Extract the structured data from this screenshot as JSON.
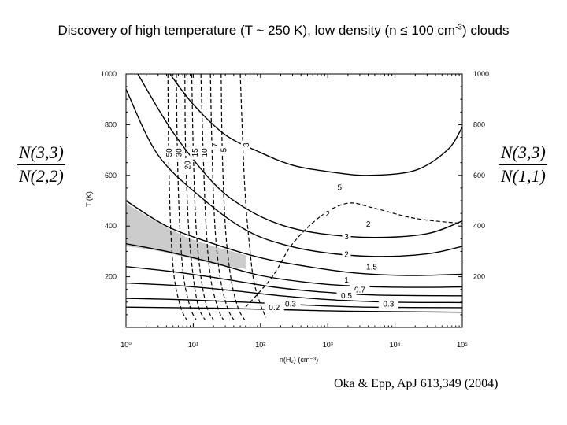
{
  "page": {
    "title": "Discovery of high temperature (T ~ 250 K), low density (n ≤ 100 cm",
    "title_sup": "-3",
    "title_end": ") clouds",
    "citation": "Oka & Epp, ApJ 613,349 (2004)"
  },
  "ratios": {
    "left": {
      "numerator": "N(3,3)",
      "denominator": "N(2,2)"
    },
    "right": {
      "numerator": "N(3,3)",
      "denominator": "N(1,1)"
    }
  },
  "colors": {
    "shade": "#cccccc",
    "line": "#000000",
    "background": "#ffffff"
  },
  "chart_data": {
    "type": "line",
    "title": "",
    "xlabel": "n(H₂) (cm⁻³)",
    "ylabel": "T (K)",
    "xscale": "log",
    "xlim": [
      1,
      100000
    ],
    "ylim": [
      0,
      1000
    ],
    "x_ticks": [
      1,
      10,
      100,
      1000,
      10000,
      100000
    ],
    "x_tick_labels": [
      "10⁰",
      "10¹",
      "10²",
      "10³",
      "10⁴",
      "10⁵"
    ],
    "y_ticks": [
      200,
      400,
      600,
      800,
      1000
    ],
    "y_tick_labels": [
      "200",
      "400",
      "600",
      "800",
      "1000"
    ],
    "shaded_region": {
      "label": "",
      "points": [
        [
          1,
          490
        ],
        [
          2,
          440
        ],
        [
          4,
          395
        ],
        [
          8,
          355
        ],
        [
          20,
          320
        ],
        [
          60,
          285
        ],
        [
          60,
          230
        ],
        [
          20,
          250
        ],
        [
          8,
          275
        ],
        [
          4,
          295
        ],
        [
          2,
          310
        ],
        [
          1,
          320
        ]
      ]
    },
    "solid_series": [
      {
        "name": "5",
        "values": [
          [
            4.5,
            1000
          ],
          [
            10,
            880
          ],
          [
            30,
            760
          ],
          [
            100,
            690
          ],
          [
            300,
            640
          ],
          [
            1000,
            615
          ],
          [
            4000,
            600
          ],
          [
            20000,
            620
          ],
          [
            60000,
            700
          ],
          [
            100000,
            790
          ]
        ]
      },
      {
        "name": "3",
        "values": [
          [
            1.5,
            1000
          ],
          [
            5,
            770
          ],
          [
            20,
            570
          ],
          [
            60,
            470
          ],
          [
            200,
            405
          ],
          [
            800,
            370
          ],
          [
            5000,
            355
          ],
          [
            30000,
            370
          ],
          [
            100000,
            420
          ]
        ]
      },
      {
        "name": "2",
        "values": [
          [
            1,
            940
          ],
          [
            3,
            680
          ],
          [
            15,
            500
          ],
          [
            60,
            385
          ],
          [
            200,
            330
          ],
          [
            900,
            295
          ],
          [
            5000,
            280
          ],
          [
            30000,
            290
          ],
          [
            100000,
            320
          ]
        ]
      },
      {
        "name": "1.5",
        "values": [
          [
            1,
            500
          ],
          [
            4,
            400
          ],
          [
            20,
            330
          ],
          [
            100,
            275
          ],
          [
            500,
            240
          ],
          [
            2500,
            215
          ],
          [
            15000,
            205
          ],
          [
            100000,
            210
          ]
        ]
      },
      {
        "name": "1",
        "values": [
          [
            1,
            330
          ],
          [
            4,
            300
          ],
          [
            20,
            255
          ],
          [
            100,
            205
          ],
          [
            600,
            175
          ],
          [
            3000,
            162
          ],
          [
            20000,
            158
          ],
          [
            100000,
            160
          ]
        ]
      },
      {
        "name": "0.7",
        "values": [
          [
            1,
            240
          ],
          [
            5,
            220
          ],
          [
            30,
            190
          ],
          [
            150,
            160
          ],
          [
            800,
            140
          ],
          [
            5000,
            128
          ],
          [
            100000,
            125
          ]
        ]
      },
      {
        "name": "0.5",
        "values": [
          [
            1,
            175
          ],
          [
            6,
            165
          ],
          [
            40,
            145
          ],
          [
            200,
            125
          ],
          [
            1000,
            110
          ],
          [
            8000,
            100
          ],
          [
            100000,
            98
          ]
        ]
      },
      {
        "name": "0.3",
        "values": [
          [
            1,
            115
          ],
          [
            10,
            108
          ],
          [
            80,
            98
          ],
          [
            500,
            88
          ],
          [
            4000,
            80
          ],
          [
            100000,
            78
          ]
        ]
      },
      {
        "name": "0.2",
        "values": [
          [
            1,
            80
          ],
          [
            20,
            76
          ],
          [
            200,
            70
          ],
          [
            2000,
            64
          ],
          [
            100000,
            60
          ]
        ]
      }
    ],
    "dashed_series": [
      {
        "name": "50",
        "values": [
          [
            4.2,
            1000
          ],
          [
            4.3,
            700
          ],
          [
            4.6,
            400
          ],
          [
            5.2,
            200
          ],
          [
            6.5,
            80
          ],
          [
            8,
            30
          ]
        ]
      },
      {
        "name": "30",
        "values": [
          [
            5.6,
            1000
          ],
          [
            5.8,
            700
          ],
          [
            6.3,
            400
          ],
          [
            7.2,
            200
          ],
          [
            9,
            80
          ],
          [
            11,
            30
          ]
        ]
      },
      {
        "name": "20",
        "values": [
          [
            7.5,
            1000
          ],
          [
            7.7,
            700
          ],
          [
            8.5,
            400
          ],
          [
            10,
            200
          ],
          [
            12,
            80
          ],
          [
            15,
            30
          ]
        ]
      },
      {
        "name": "15",
        "values": [
          [
            9.5,
            1000
          ],
          [
            10,
            700
          ],
          [
            11,
            400
          ],
          [
            13,
            200
          ],
          [
            16,
            80
          ],
          [
            20,
            30
          ]
        ]
      },
      {
        "name": "10",
        "values": [
          [
            13,
            1000
          ],
          [
            14,
            700
          ],
          [
            15.5,
            400
          ],
          [
            18,
            200
          ],
          [
            23,
            80
          ],
          [
            28,
            30
          ]
        ]
      },
      {
        "name": "7",
        "values": [
          [
            18,
            1000
          ],
          [
            19,
            700
          ],
          [
            21,
            400
          ],
          [
            25,
            200
          ],
          [
            32,
            80
          ],
          [
            40,
            30
          ]
        ]
      },
      {
        "name": "5",
        "values": [
          [
            26,
            1000
          ],
          [
            27,
            700
          ],
          [
            30,
            400
          ],
          [
            36,
            200
          ],
          [
            46,
            80
          ],
          [
            58,
            30
          ]
        ]
      },
      {
        "name": "3",
        "values": [
          [
            50,
            1000
          ],
          [
            55,
            700
          ],
          [
            60,
            500
          ],
          [
            70,
            300
          ],
          [
            80,
            180
          ],
          [
            100,
            90
          ],
          [
            120,
            40
          ]
        ]
      },
      {
        "name": "2",
        "values": [
          [
            60,
            80
          ],
          [
            150,
            200
          ],
          [
            300,
            330
          ],
          [
            800,
            440
          ],
          [
            2000,
            490
          ],
          [
            5000,
            470
          ],
          [
            20000,
            430
          ],
          [
            100000,
            410
          ]
        ]
      }
    ],
    "labels": [
      {
        "text": "50",
        "x": 4.3,
        "y": 690,
        "rotate": -90
      },
      {
        "text": "30",
        "x": 6.0,
        "y": 690,
        "rotate": -90
      },
      {
        "text": "20",
        "x": 8.1,
        "y": 640,
        "rotate": -90
      },
      {
        "text": "15",
        "x": 10.5,
        "y": 690,
        "rotate": -90
      },
      {
        "text": "10",
        "x": 14.5,
        "y": 690,
        "rotate": -90
      },
      {
        "text": "7",
        "x": 20.5,
        "y": 720,
        "rotate": -90
      },
      {
        "text": "5",
        "x": 28,
        "y": 700,
        "rotate": -90
      },
      {
        "text": "3",
        "x": 60,
        "y": 720,
        "rotate": -90
      },
      {
        "text": "5",
        "x": 1500,
        "y": 555,
        "rotate": 0
      },
      {
        "text": "2",
        "x": 1000,
        "y": 450,
        "rotate": 0
      },
      {
        "text": "2",
        "x": 4000,
        "y": 410,
        "rotate": 0
      },
      {
        "text": "3",
        "x": 1900,
        "y": 360,
        "rotate": 0
      },
      {
        "text": "2",
        "x": 1900,
        "y": 290,
        "rotate": 0
      },
      {
        "text": "1.5",
        "x": 4500,
        "y": 240,
        "rotate": 0
      },
      {
        "text": "1",
        "x": 1900,
        "y": 190,
        "rotate": 0
      },
      {
        "text": "0.7",
        "x": 3000,
        "y": 150,
        "rotate": 0
      },
      {
        "text": "0.5",
        "x": 1900,
        "y": 128,
        "rotate": 0
      },
      {
        "text": "0.3",
        "x": 8000,
        "y": 95,
        "rotate": 0
      },
      {
        "text": "0.3",
        "x": 280,
        "y": 95,
        "rotate": 0
      },
      {
        "text": "0.2",
        "x": 160,
        "y": 80,
        "rotate": 0
      }
    ]
  }
}
